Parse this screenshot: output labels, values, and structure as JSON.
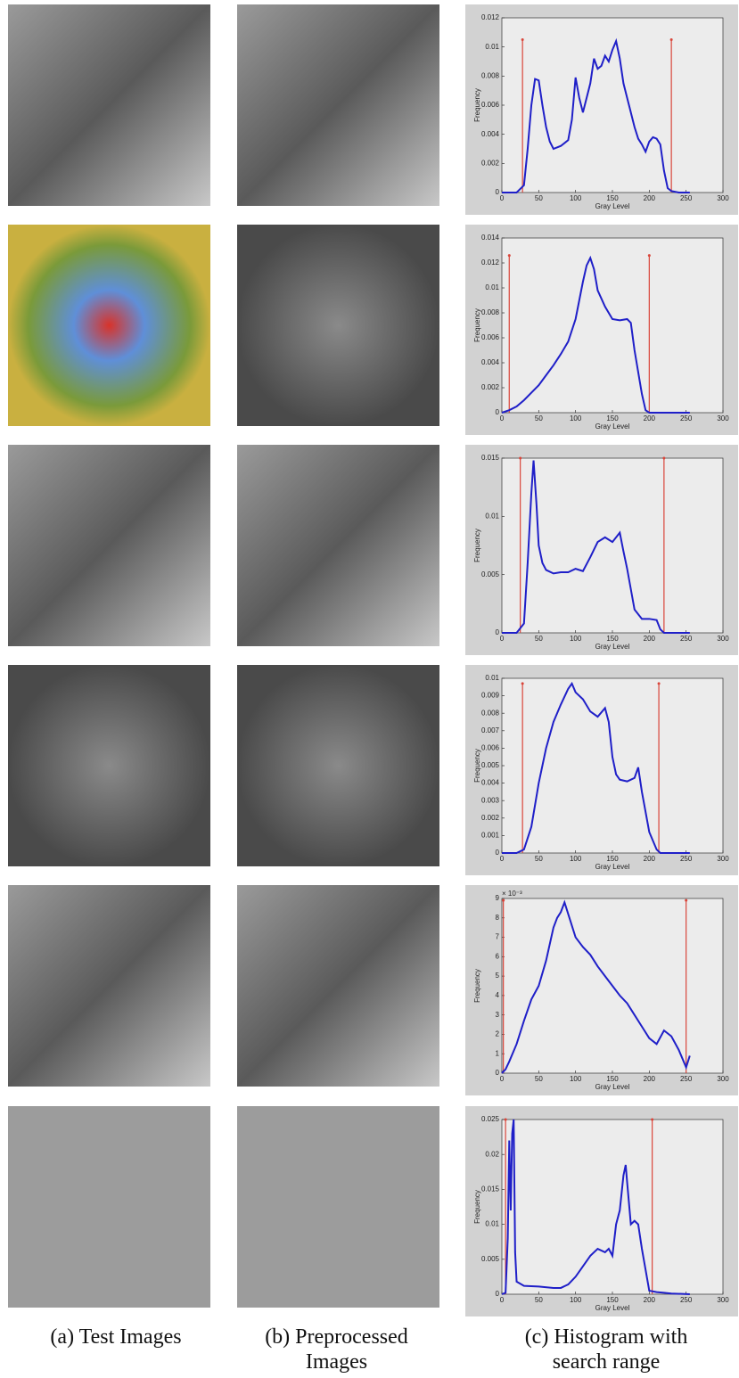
{
  "chart_data": [
    {
      "type": "line",
      "xlabel": "Gray Level",
      "ylabel": "Frequency",
      "color": "#1f1fc8",
      "xlim": [
        0,
        300
      ],
      "xticks": [
        0,
        50,
        100,
        150,
        200,
        250,
        300
      ],
      "ylim": [
        0,
        0.012
      ],
      "yticks": [
        0,
        0.002,
        0.004,
        0.006,
        0.008,
        0.01,
        0.012
      ],
      "x": [
        0,
        20,
        30,
        35,
        40,
        45,
        50,
        55,
        60,
        65,
        70,
        80,
        90,
        95,
        100,
        105,
        110,
        120,
        125,
        130,
        135,
        140,
        145,
        150,
        155,
        160,
        165,
        170,
        175,
        180,
        185,
        190,
        195,
        200,
        205,
        210,
        215,
        220,
        225,
        230,
        240,
        255
      ],
      "values": [
        0,
        0,
        0.0005,
        0.003,
        0.006,
        0.0078,
        0.0077,
        0.006,
        0.0045,
        0.0035,
        0.003,
        0.0032,
        0.0036,
        0.005,
        0.0079,
        0.0065,
        0.0055,
        0.0075,
        0.0092,
        0.0085,
        0.0087,
        0.0094,
        0.009,
        0.0098,
        0.0104,
        0.0092,
        0.0075,
        0.0065,
        0.0055,
        0.0045,
        0.0037,
        0.0033,
        0.0028,
        0.0035,
        0.0038,
        0.0037,
        0.0033,
        0.0015,
        0.0003,
        0.0001,
        0,
        0
      ],
      "search_range": {
        "x": [
          28,
          230
        ],
        "height": 0.0105,
        "color": "#d9453a"
      }
    },
    {
      "type": "line",
      "xlabel": "Gray Level",
      "ylabel": "Frequency",
      "color": "#1f1fc8",
      "xlim": [
        0,
        300
      ],
      "xticks": [
        0,
        50,
        100,
        150,
        200,
        250,
        300
      ],
      "ylim": [
        0,
        0.014
      ],
      "yticks": [
        0,
        0.002,
        0.004,
        0.006,
        0.008,
        0.01,
        0.012,
        0.014
      ],
      "x": [
        0,
        10,
        20,
        30,
        40,
        50,
        60,
        70,
        80,
        90,
        100,
        105,
        110,
        115,
        120,
        125,
        130,
        140,
        150,
        160,
        170,
        175,
        180,
        190,
        195,
        200,
        210,
        220,
        230,
        240,
        255
      ],
      "values": [
        0,
        0.0002,
        0.0005,
        0.001,
        0.0016,
        0.0022,
        0.003,
        0.0038,
        0.0047,
        0.0057,
        0.0075,
        0.009,
        0.0105,
        0.0118,
        0.0124,
        0.0115,
        0.0098,
        0.0085,
        0.0075,
        0.0074,
        0.0075,
        0.0072,
        0.005,
        0.0015,
        0.0002,
        0,
        0,
        0,
        0,
        0,
        0
      ],
      "search_range": {
        "x": [
          10,
          200
        ],
        "height": 0.0126,
        "color": "#d9453a"
      }
    },
    {
      "type": "line",
      "xlabel": "Gray Level",
      "ylabel": "Frequency",
      "color": "#1f1fc8",
      "xlim": [
        0,
        300
      ],
      "xticks": [
        0,
        50,
        100,
        150,
        200,
        250,
        300
      ],
      "ylim": [
        0,
        0.015
      ],
      "yticks": [
        0,
        0.005,
        0.01,
        0.015
      ],
      "x": [
        0,
        20,
        30,
        35,
        40,
        43,
        47,
        50,
        55,
        60,
        70,
        80,
        90,
        100,
        110,
        120,
        130,
        140,
        150,
        160,
        165,
        170,
        180,
        190,
        200,
        210,
        215,
        220,
        230,
        255
      ],
      "values": [
        0,
        0,
        0.0008,
        0.006,
        0.012,
        0.0148,
        0.011,
        0.0075,
        0.006,
        0.0054,
        0.0051,
        0.0052,
        0.0052,
        0.0055,
        0.0053,
        0.0065,
        0.0078,
        0.0082,
        0.0078,
        0.0086,
        0.007,
        0.0055,
        0.002,
        0.0012,
        0.0012,
        0.0011,
        0.0003,
        0,
        0,
        0
      ],
      "search_range": {
        "x": [
          25,
          220
        ],
        "height": 0.015,
        "color": "#d9453a"
      }
    },
    {
      "type": "line",
      "xlabel": "Gray Level",
      "ylabel": "Frequency",
      "color": "#1f1fc8",
      "xlim": [
        0,
        300
      ],
      "xticks": [
        0,
        50,
        100,
        150,
        200,
        250,
        300
      ],
      "ylim": [
        0,
        0.01
      ],
      "yticks": [
        0,
        0.001,
        0.002,
        0.003,
        0.004,
        0.005,
        0.006,
        0.007,
        0.008,
        0.009,
        0.01
      ],
      "x": [
        0,
        20,
        30,
        40,
        50,
        60,
        70,
        80,
        90,
        95,
        100,
        110,
        120,
        130,
        140,
        145,
        150,
        155,
        160,
        170,
        180,
        185,
        190,
        200,
        210,
        215,
        220,
        255
      ],
      "values": [
        0,
        0,
        0.0002,
        0.0015,
        0.004,
        0.006,
        0.0075,
        0.0085,
        0.0094,
        0.0097,
        0.0092,
        0.0088,
        0.0081,
        0.0078,
        0.0083,
        0.0075,
        0.0055,
        0.0045,
        0.0042,
        0.0041,
        0.0043,
        0.0049,
        0.0035,
        0.0012,
        0.0002,
        0,
        0,
        0
      ],
      "search_range": {
        "x": [
          28,
          213
        ],
        "height": 0.0097,
        "color": "#d9453a"
      }
    },
    {
      "type": "line",
      "xlabel": "Gray Level",
      "ylabel": "Frequency",
      "color": "#1f1fc8",
      "y_exponent": "× 10⁻³",
      "xlim": [
        0,
        300
      ],
      "xticks": [
        0,
        50,
        100,
        150,
        200,
        250,
        300
      ],
      "ylim": [
        0,
        9
      ],
      "yticks": [
        0,
        1,
        2,
        3,
        4,
        5,
        6,
        7,
        8,
        9
      ],
      "x": [
        0,
        5,
        10,
        20,
        30,
        40,
        50,
        60,
        70,
        75,
        80,
        85,
        90,
        100,
        110,
        120,
        130,
        140,
        150,
        160,
        170,
        180,
        190,
        200,
        210,
        220,
        230,
        240,
        250,
        255
      ],
      "values": [
        0,
        0.2,
        0.6,
        1.5,
        2.7,
        3.8,
        4.5,
        5.8,
        7.5,
        8,
        8.3,
        8.8,
        8.2,
        7,
        6.5,
        6.1,
        5.5,
        5,
        4.5,
        4,
        3.6,
        3,
        2.4,
        1.8,
        1.5,
        2.2,
        1.9,
        1.2,
        0.3,
        0.9
      ],
      "search_range": {
        "x": [
          2,
          250
        ],
        "height": 8.9,
        "color": "#d9453a"
      }
    },
    {
      "type": "line",
      "xlabel": "Gray Level",
      "ylabel": "Frequency",
      "color": "#1f1fc8",
      "xlim": [
        0,
        300
      ],
      "xticks": [
        0,
        50,
        100,
        150,
        200,
        250,
        300
      ],
      "ylim": [
        0,
        0.025
      ],
      "yticks": [
        0,
        0.005,
        0.01,
        0.015,
        0.02,
        0.025
      ],
      "x": [
        0,
        5,
        8,
        10,
        12,
        14,
        16,
        18,
        20,
        25,
        30,
        50,
        70,
        80,
        90,
        100,
        110,
        120,
        130,
        140,
        145,
        150,
        155,
        160,
        165,
        168,
        170,
        175,
        180,
        185,
        190,
        200,
        210,
        220,
        230,
        255
      ],
      "values": [
        0,
        0.0002,
        0.008,
        0.022,
        0.012,
        0.023,
        0.025,
        0.006,
        0.0018,
        0.0015,
        0.0012,
        0.0011,
        0.0009,
        0.0009,
        0.0014,
        0.0025,
        0.004,
        0.0055,
        0.0065,
        0.006,
        0.0065,
        0.0055,
        0.01,
        0.012,
        0.017,
        0.0185,
        0.016,
        0.01,
        0.0105,
        0.01,
        0.0065,
        0.0005,
        0.0003,
        0.0002,
        0.0001,
        0
      ],
      "search_range": {
        "x": [
          5,
          204
        ],
        "height": 0.025,
        "color": "#d9453a"
      }
    }
  ],
  "captions": [
    "(a) Test Images",
    "(b) Preprocessed Images",
    "(c) Histogram with search range"
  ]
}
